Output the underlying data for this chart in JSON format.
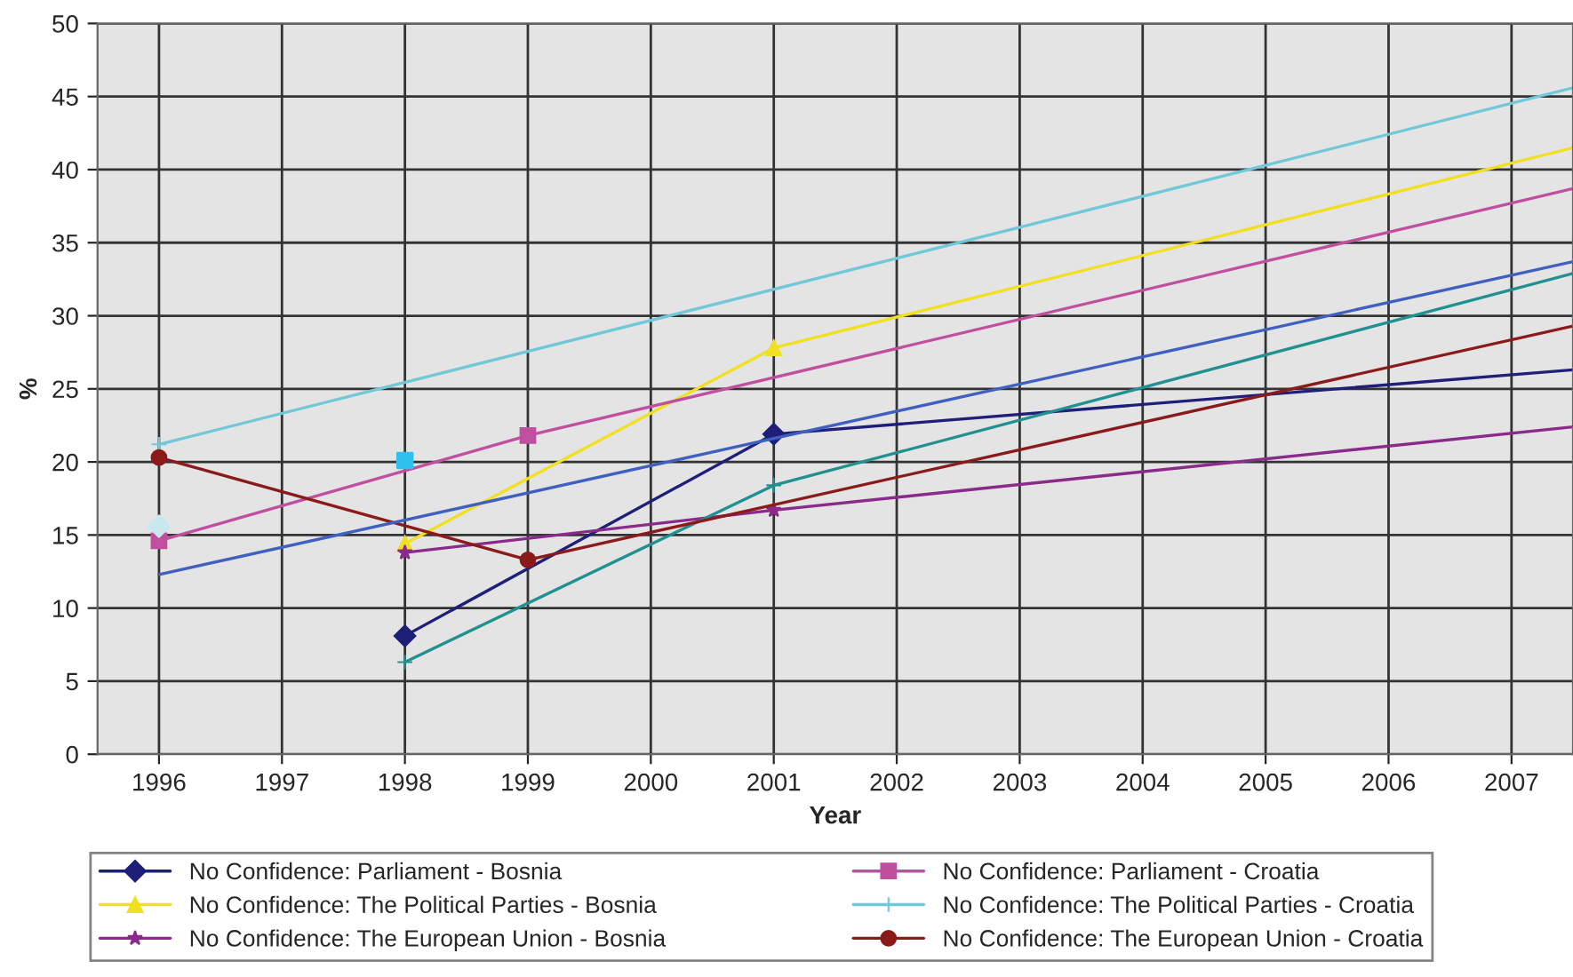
{
  "chart_data": {
    "type": "line",
    "xlabel": "Year",
    "ylabel": "%",
    "xlim": [
      1995.5,
      2007.5
    ],
    "xticks": [
      1996,
      1997,
      1998,
      1999,
      2000,
      2001,
      2002,
      2003,
      2004,
      2005,
      2006,
      2007
    ],
    "ylim": [
      0,
      50
    ],
    "yticks": [
      0,
      5,
      10,
      15,
      20,
      25,
      30,
      35,
      40,
      45,
      50
    ],
    "grid": true,
    "legend": "bottom",
    "series": [
      {
        "name": "No Confidence: Parliament - Bosnia",
        "color": "#1f1f7a",
        "marker": "diamond",
        "x": [
          1998,
          2001
        ],
        "values": [
          8.1,
          21.9
        ]
      },
      {
        "name": "No Confidence: Parliament - Croatia",
        "color": "#c04fa0",
        "marker": "square",
        "x": [
          1996,
          1999
        ],
        "values": [
          14.6,
          21.8
        ]
      },
      {
        "name": "No Confidence: The Political Parties - Bosnia",
        "color": "#f0e020",
        "marker": "triangle",
        "x": [
          1998,
          2001
        ],
        "values": [
          14.4,
          27.8
        ]
      },
      {
        "name": "No Confidence: The Political Parties - Croatia",
        "color": "#70c8d8",
        "marker": "cross",
        "x": [
          1996
        ],
        "values": [
          21.2
        ]
      },
      {
        "name": "No Confidence: The European Union - Bosnia",
        "color": "#8a2a8a",
        "marker": "star",
        "x": [
          1998,
          2001
        ],
        "values": [
          13.8,
          16.7
        ]
      },
      {
        "name": "No Confidence: The European Union - Croatia",
        "color": "#8b1a1a",
        "marker": "circle",
        "x": [
          1996,
          1999
        ],
        "values": [
          20.3,
          13.3
        ]
      },
      {
        "color": "#209090",
        "marker": "cross",
        "x": [
          1998,
          2001
        ],
        "values": [
          6.3,
          18.4
        ]
      },
      {
        "type": "scatter",
        "color": "#c8e8f0",
        "marker": "diamond",
        "x": [
          1996
        ],
        "values": [
          15.6
        ]
      },
      {
        "type": "scatter",
        "color": "#30c0f0",
        "marker": "square",
        "x": [
          1998
        ],
        "values": [
          20.1
        ]
      },
      {
        "color": "#1f1f7a",
        "marker": "none",
        "x": [
          2001,
          2007.5
        ],
        "values": [
          21.9,
          26.3
        ]
      },
      {
        "color": "#c04fa0",
        "marker": "none",
        "x": [
          1999,
          2007.5
        ],
        "values": [
          21.8,
          38.7
        ]
      },
      {
        "color": "#f0e020",
        "marker": "none",
        "x": [
          2001,
          2007.5
        ],
        "values": [
          27.8,
          41.5
        ]
      },
      {
        "color": "#70c8d8",
        "marker": "none",
        "x": [
          1996,
          2007.5
        ],
        "values": [
          21.2,
          45.6
        ]
      },
      {
        "color": "#8a2a8a",
        "marker": "none",
        "x": [
          2001,
          2007.5
        ],
        "values": [
          16.7,
          22.4
        ]
      },
      {
        "color": "#8b1a1a",
        "marker": "none",
        "x": [
          1999,
          2007.5
        ],
        "values": [
          13.3,
          29.3
        ]
      },
      {
        "color": "#209090",
        "marker": "none",
        "x": [
          2001,
          2007.5
        ],
        "values": [
          18.4,
          32.9
        ]
      },
      {
        "color": "#4060c0",
        "marker": "none",
        "x": [
          1996,
          2007.5
        ],
        "values": [
          12.3,
          33.7
        ]
      }
    ]
  }
}
